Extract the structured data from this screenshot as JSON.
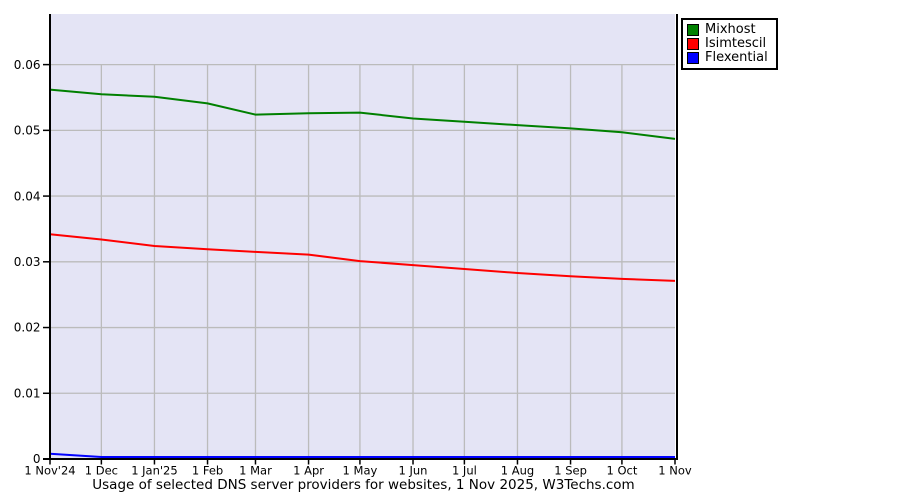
{
  "chart_data": {
    "type": "line",
    "title": "Usage of selected DNS server providers for websites, 1 Nov 2025, W3Techs.com",
    "x_tick_labels": [
      "1 Nov'24",
      "1 Dec",
      "1 Jan'25",
      "1 Feb",
      "1 Mar",
      "1 Apr",
      "1 May",
      "1 Jun",
      "1 Jul",
      "1 Aug",
      "1 Sep",
      "1 Oct",
      "1 Nov"
    ],
    "y_tick_labels": [
      "0",
      "0.01",
      "0.02",
      "0.03",
      "0.04",
      "0.05",
      "0.06"
    ],
    "y_tick_values": [
      0,
      0.01,
      0.02,
      0.03,
      0.04,
      0.05,
      0.06
    ],
    "ylim": [
      0,
      0.0677
    ],
    "grid": true,
    "legend_position": "outside-top-right",
    "series": [
      {
        "name": "Mixhost",
        "color": "#008000",
        "values": [
          0.0562,
          0.0555,
          0.0551,
          0.0541,
          0.0524,
          0.0526,
          0.0527,
          0.0518,
          0.0513,
          0.0508,
          0.0503,
          0.0497,
          0.0487
        ]
      },
      {
        "name": "Isimtescil",
        "color": "#ff0000",
        "values": [
          0.0342,
          0.0334,
          0.0324,
          0.0319,
          0.0315,
          0.0311,
          0.0301,
          0.0295,
          0.0289,
          0.0283,
          0.0278,
          0.0274,
          0.0271
        ]
      },
      {
        "name": "Flexential",
        "color": "#0000ff",
        "values": [
          0.0008,
          0.0003,
          0.0003,
          0.0003,
          0.0003,
          0.0003,
          0.0003,
          0.0003,
          0.0003,
          0.0003,
          0.0003,
          0.0003,
          0.0003
        ]
      }
    ]
  },
  "colors": {
    "plot_bg": "#e4e4f5",
    "grid": "#bbbbbb",
    "axis": "#000000",
    "text": "#000000",
    "legend_bg": "#ffffff",
    "legend_border": "#000000"
  }
}
